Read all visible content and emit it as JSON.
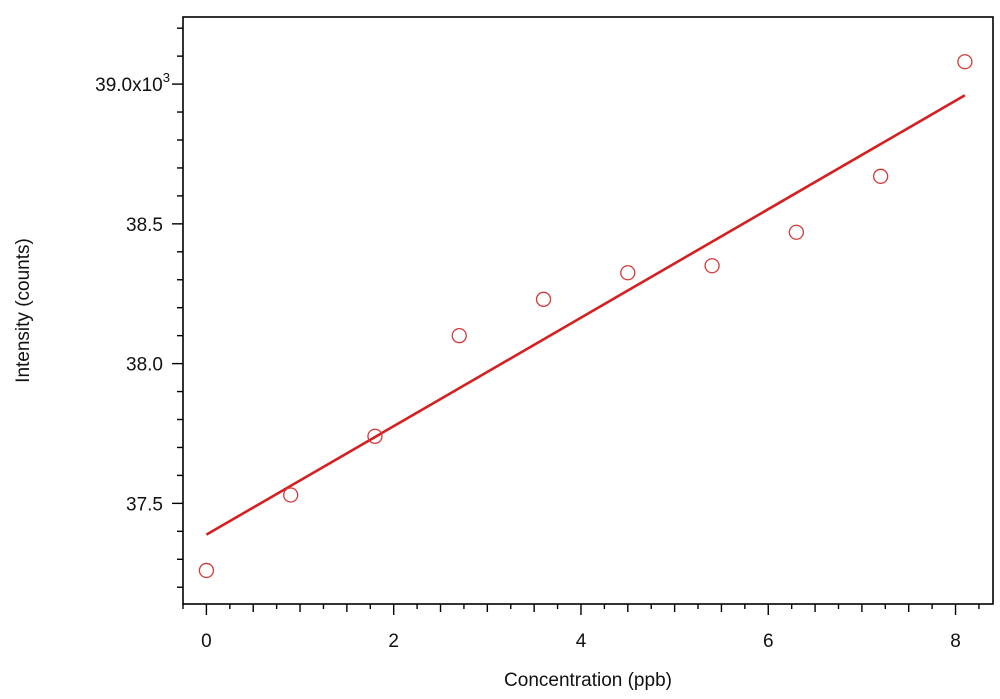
{
  "chart_data": {
    "type": "scatter",
    "xlabel": "Concentration (ppb)",
    "ylabel": "Intensity (counts)",
    "xlim": [
      -0.25,
      8.4
    ],
    "ylim": [
      37140,
      39240
    ],
    "x_ticks": [
      0,
      2,
      4,
      6,
      8
    ],
    "x_tick_labels": [
      "0",
      "2",
      "4",
      "6",
      "8"
    ],
    "x_minor_step": 0.25,
    "y_ticks": [
      37500,
      38000,
      38500,
      39000
    ],
    "y_tick_labels": [
      "37.5",
      "38.0",
      "38.5",
      "39.0x10"
    ],
    "y_exponent": "3",
    "y_minor_step": 100,
    "grid": false,
    "series": [
      {
        "kind": "points",
        "marker": "open-circle",
        "color": "#d43a3a",
        "x": [
          0,
          0.9,
          1.8,
          2.7,
          3.6,
          4.5,
          5.4,
          6.3,
          7.2,
          8.1
        ],
        "y": [
          37260,
          37530,
          37740,
          38100,
          38230,
          38325,
          38350,
          38470,
          38670,
          39080
        ]
      },
      {
        "kind": "fit-line",
        "color": "#d42020",
        "x": [
          0,
          8.1
        ],
        "y": [
          37388,
          38960
        ]
      }
    ]
  }
}
